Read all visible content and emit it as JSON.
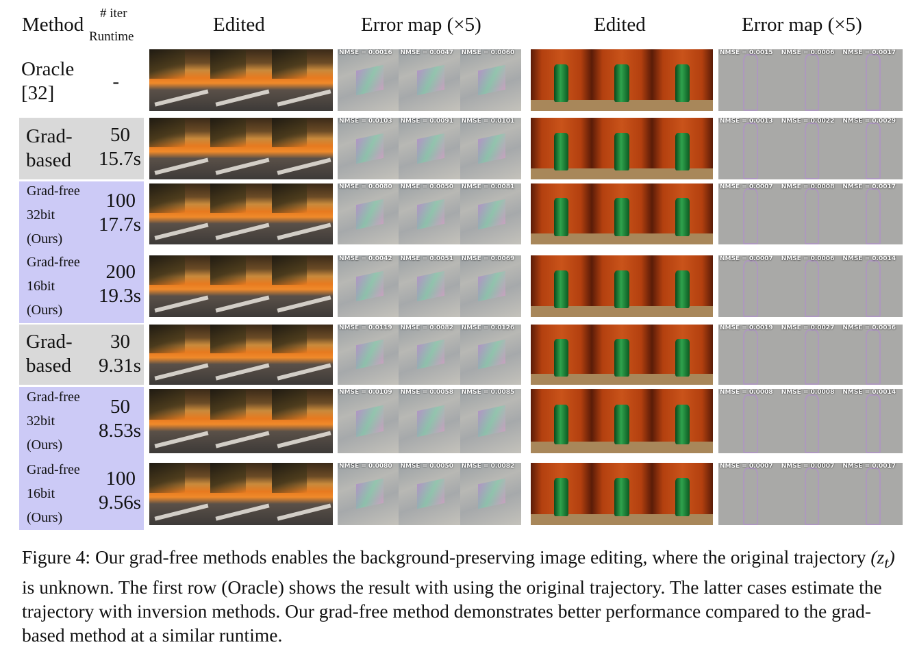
{
  "header": {
    "method": "Method",
    "iter": "# iter",
    "runtime": "Runtime",
    "cols": [
      "Edited",
      "Error map (×5)",
      "Edited",
      "Error map (×5)"
    ]
  },
  "rows": [
    {
      "method": "Oracle\n[32]",
      "iter": "-",
      "runtime": "",
      "nmse_bus": [
        "NMSE = 0.0016",
        "NMSE = 0.0047",
        "NMSE = 0.0060"
      ],
      "nmse_bottle": [
        "NMSE = 0.0015",
        "NMSE = 0.0006",
        "NMSE = 0.0017"
      ]
    },
    {
      "method": "Grad-\nbased",
      "iter": "50",
      "runtime": "15.7s",
      "nmse_bus": [
        "NMSE = 0.0103",
        "NMSE = 0.0091",
        "NMSE = 0.0101"
      ],
      "nmse_bottle": [
        "NMSE = 0.0013",
        "NMSE = 0.0022",
        "NMSE = 0.0029"
      ]
    },
    {
      "method": "Grad-free\n32bit\n(Ours)",
      "iter": "100",
      "runtime": "17.7s",
      "nmse_bus": [
        "NMSE = 0.0080",
        "NMSE = 0.0050",
        "NMSE = 0.0081"
      ],
      "nmse_bottle": [
        "NMSE = 0.0007",
        "NMSE = 0.0008",
        "NMSE = 0.0017"
      ]
    },
    {
      "method": "Grad-free\n16bit\n(Ours)",
      "iter": "200",
      "runtime": "19.3s",
      "nmse_bus": [
        "NMSE = 0.0042",
        "NMSE = 0.0051",
        "NMSE = 0.0069"
      ],
      "nmse_bottle": [
        "NMSE = 0.0007",
        "NMSE = 0.0006",
        "NMSE = 0.0014"
      ]
    },
    {
      "method": "Grad-\nbased",
      "iter": "30",
      "runtime": "9.31s",
      "nmse_bus": [
        "NMSE = 0.0119",
        "NMSE = 0.0082",
        "NMSE = 0.0126"
      ],
      "nmse_bottle": [
        "NMSE = 0.0019",
        "NMSE = 0.0027",
        "NMSE = 0.0036"
      ]
    },
    {
      "method": "Grad-free\n32bit\n(Ours)",
      "iter": "50",
      "runtime": "8.53s",
      "nmse_bus": [
        "NMSE = 0.0109",
        "NMSE = 0.0058",
        "NMSE = 0.0085"
      ],
      "nmse_bottle": [
        "NMSE = 0.0008",
        "NMSE = 0.0008",
        "NMSE = 0.0014"
      ]
    },
    {
      "method": "Grad-free\n16bit\n(Ours)",
      "iter": "100",
      "runtime": "9.56s",
      "nmse_bus": [
        "NMSE = 0.0080",
        "NMSE = 0.0050",
        "NMSE = 0.0082"
      ],
      "nmse_bottle": [
        "NMSE = 0.0007",
        "NMSE = 0.0007",
        "NMSE = 0.0017"
      ]
    }
  ],
  "caption": {
    "p1": "Figure 4: Our grad-free methods enables the background-preserving image editing, where the original trajectory ",
    "sym": "(z",
    "sub": "t",
    "sym_end": ")",
    "p2": " is unknown. The first row (Oracle) shows the result with using the original trajectory. The latter cases estimate the trajectory with inversion methods. Our grad-free method demonstrates better performance compared to the grad-based method at a similar runtime."
  }
}
